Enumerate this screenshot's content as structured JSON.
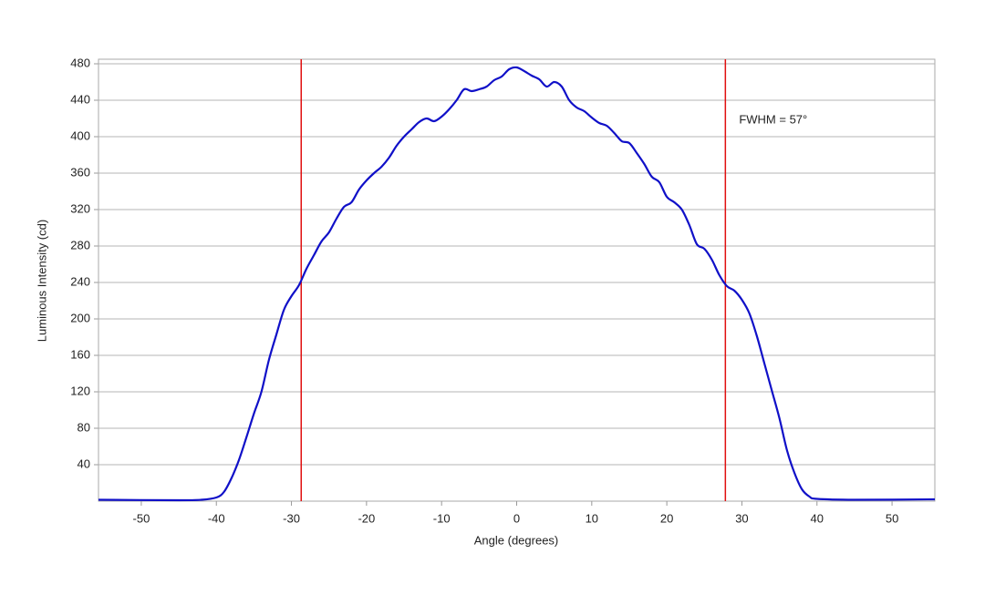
{
  "chart_data": {
    "type": "line",
    "x_label": "Angle (degrees)",
    "y_label": "Luminous Intensity (cd)",
    "annotation": "FWHM = 57°",
    "xlim": [
      -55.7,
      55.7
    ],
    "ylim": [
      0,
      485
    ],
    "xticks": [
      -50,
      -40,
      -30,
      -20,
      -10,
      0,
      10,
      20,
      30,
      40,
      50
    ],
    "yticks": [
      40,
      80,
      120,
      160,
      200,
      240,
      280,
      320,
      360,
      400,
      440,
      480
    ],
    "grid": true,
    "x": [
      -55.7,
      -45,
      -42,
      -40,
      -39,
      -38,
      -37,
      -36,
      -35,
      -34,
      -33,
      -32,
      -31,
      -30,
      -29,
      -28,
      -27,
      -26,
      -25,
      -24,
      -23,
      -22,
      -21,
      -20,
      -19,
      -18,
      -17,
      -16,
      -15,
      -14,
      -13,
      -12,
      -11,
      -10,
      -9,
      -8,
      -7,
      -6,
      -5,
      -4,
      -3,
      -2,
      -1,
      0,
      1,
      2,
      3,
      4,
      5,
      6,
      7,
      8,
      9,
      10,
      11,
      12,
      13,
      14,
      15,
      16,
      17,
      18,
      19,
      20,
      21,
      22,
      23,
      24,
      25,
      26,
      27,
      28,
      29,
      30,
      31,
      32,
      33,
      34,
      35,
      36,
      37,
      38,
      39,
      40,
      45,
      55.7
    ],
    "series": [
      {
        "color": "#1010c8",
        "values": [
          1.5,
          1,
          1.5,
          4,
          10,
          25,
          45,
          70,
          96,
          120,
          155,
          183,
          210,
          225,
          237,
          255,
          270,
          285,
          295,
          310,
          323,
          328,
          342,
          352,
          360,
          367,
          377,
          390,
          400,
          408,
          416,
          420,
          417,
          422,
          430,
          440,
          452,
          450,
          452,
          455,
          462,
          466,
          474,
          476,
          472,
          467,
          463,
          455,
          460,
          455,
          440,
          432,
          428,
          421,
          415,
          412,
          404,
          395,
          393,
          382,
          370,
          356,
          350,
          334,
          328,
          320,
          303,
          282,
          277,
          265,
          248,
          236,
          231,
          221,
          206,
          181,
          151,
          121,
          91,
          56,
          31,
          13,
          5,
          2.5,
          1.5,
          2
        ]
      }
    ],
    "vlines": [
      -28.7,
      27.8
    ],
    "vline_color": "#e01010"
  }
}
